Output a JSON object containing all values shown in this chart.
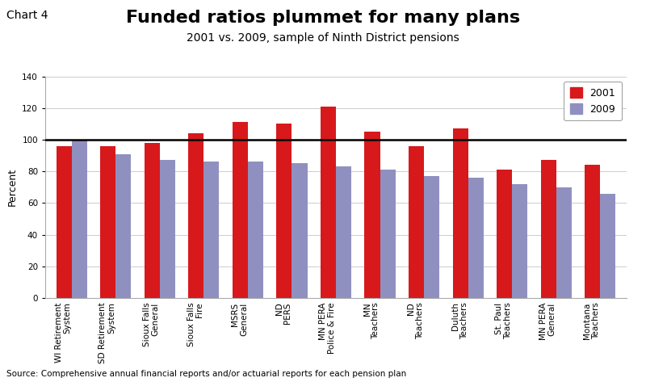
{
  "title": "Funded ratios plummet for many plans",
  "subtitle": "2001 vs. 2009, sample of Ninth District pensions",
  "chart_label": "Chart 4",
  "ylabel": "Percent",
  "source": "Source: Comprehensive annual financial reports and/or actuarial reports for each pension plan",
  "categories": [
    "WI Retirement\nSystem",
    "SD Retirement\nSystem",
    "Sioux Falls\nGeneral",
    "Sioux Falls\nFire",
    "MSRS\nGeneral",
    "ND\nPERS",
    "MN PERA\nPolice & Fire",
    "MN\nTeachers",
    "ND\nTeachers",
    "Duluth\nTeachers",
    "St. Paul\nTeachers",
    "MN PERA\nGeneral",
    "Montana\nTeachers"
  ],
  "values_2001": [
    96,
    96,
    98,
    104,
    111,
    110,
    121,
    105,
    96,
    107,
    81,
    87,
    84
  ],
  "values_2009": [
    100,
    91,
    87,
    86,
    86,
    85,
    83,
    81,
    77,
    76,
    72,
    70,
    66
  ],
  "color_2001": "#d7191c",
  "color_2009": "#9090c0",
  "ylim": [
    0,
    140
  ],
  "yticks": [
    0,
    20,
    40,
    60,
    80,
    100,
    120,
    140
  ],
  "hline_y": 100,
  "bar_width": 0.35,
  "legend_labels": [
    "2001",
    "2009"
  ],
  "background_color": "#ffffff",
  "grid_color": "#cccccc",
  "title_fontsize": 16,
  "subtitle_fontsize": 10,
  "chart_label_fontsize": 10,
  "axis_label_fontsize": 9,
  "tick_fontsize": 7.5,
  "source_fontsize": 7.5
}
